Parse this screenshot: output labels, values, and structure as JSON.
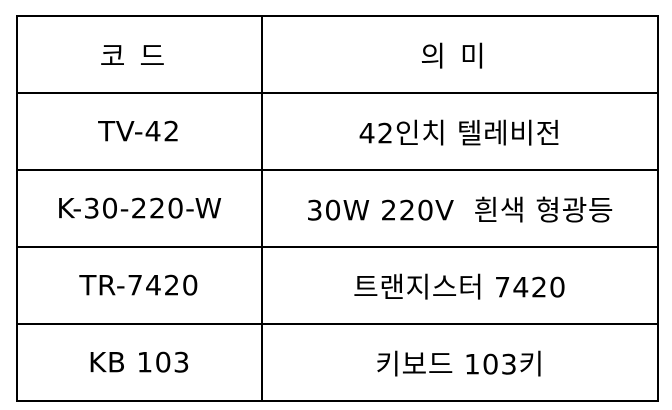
{
  "table": {
    "headers": {
      "code": "코드",
      "meaning": "의미"
    },
    "rows": [
      {
        "code": "TV-42",
        "meaning": "42인치 텔레비전"
      },
      {
        "code": "K-30-220-W",
        "meaning": "30W 220V  흰색 형광등"
      },
      {
        "code": "TR-7420",
        "meaning": "트랜지스터 7420"
      },
      {
        "code": "KB 103",
        "meaning": "키보드 103키"
      }
    ]
  }
}
